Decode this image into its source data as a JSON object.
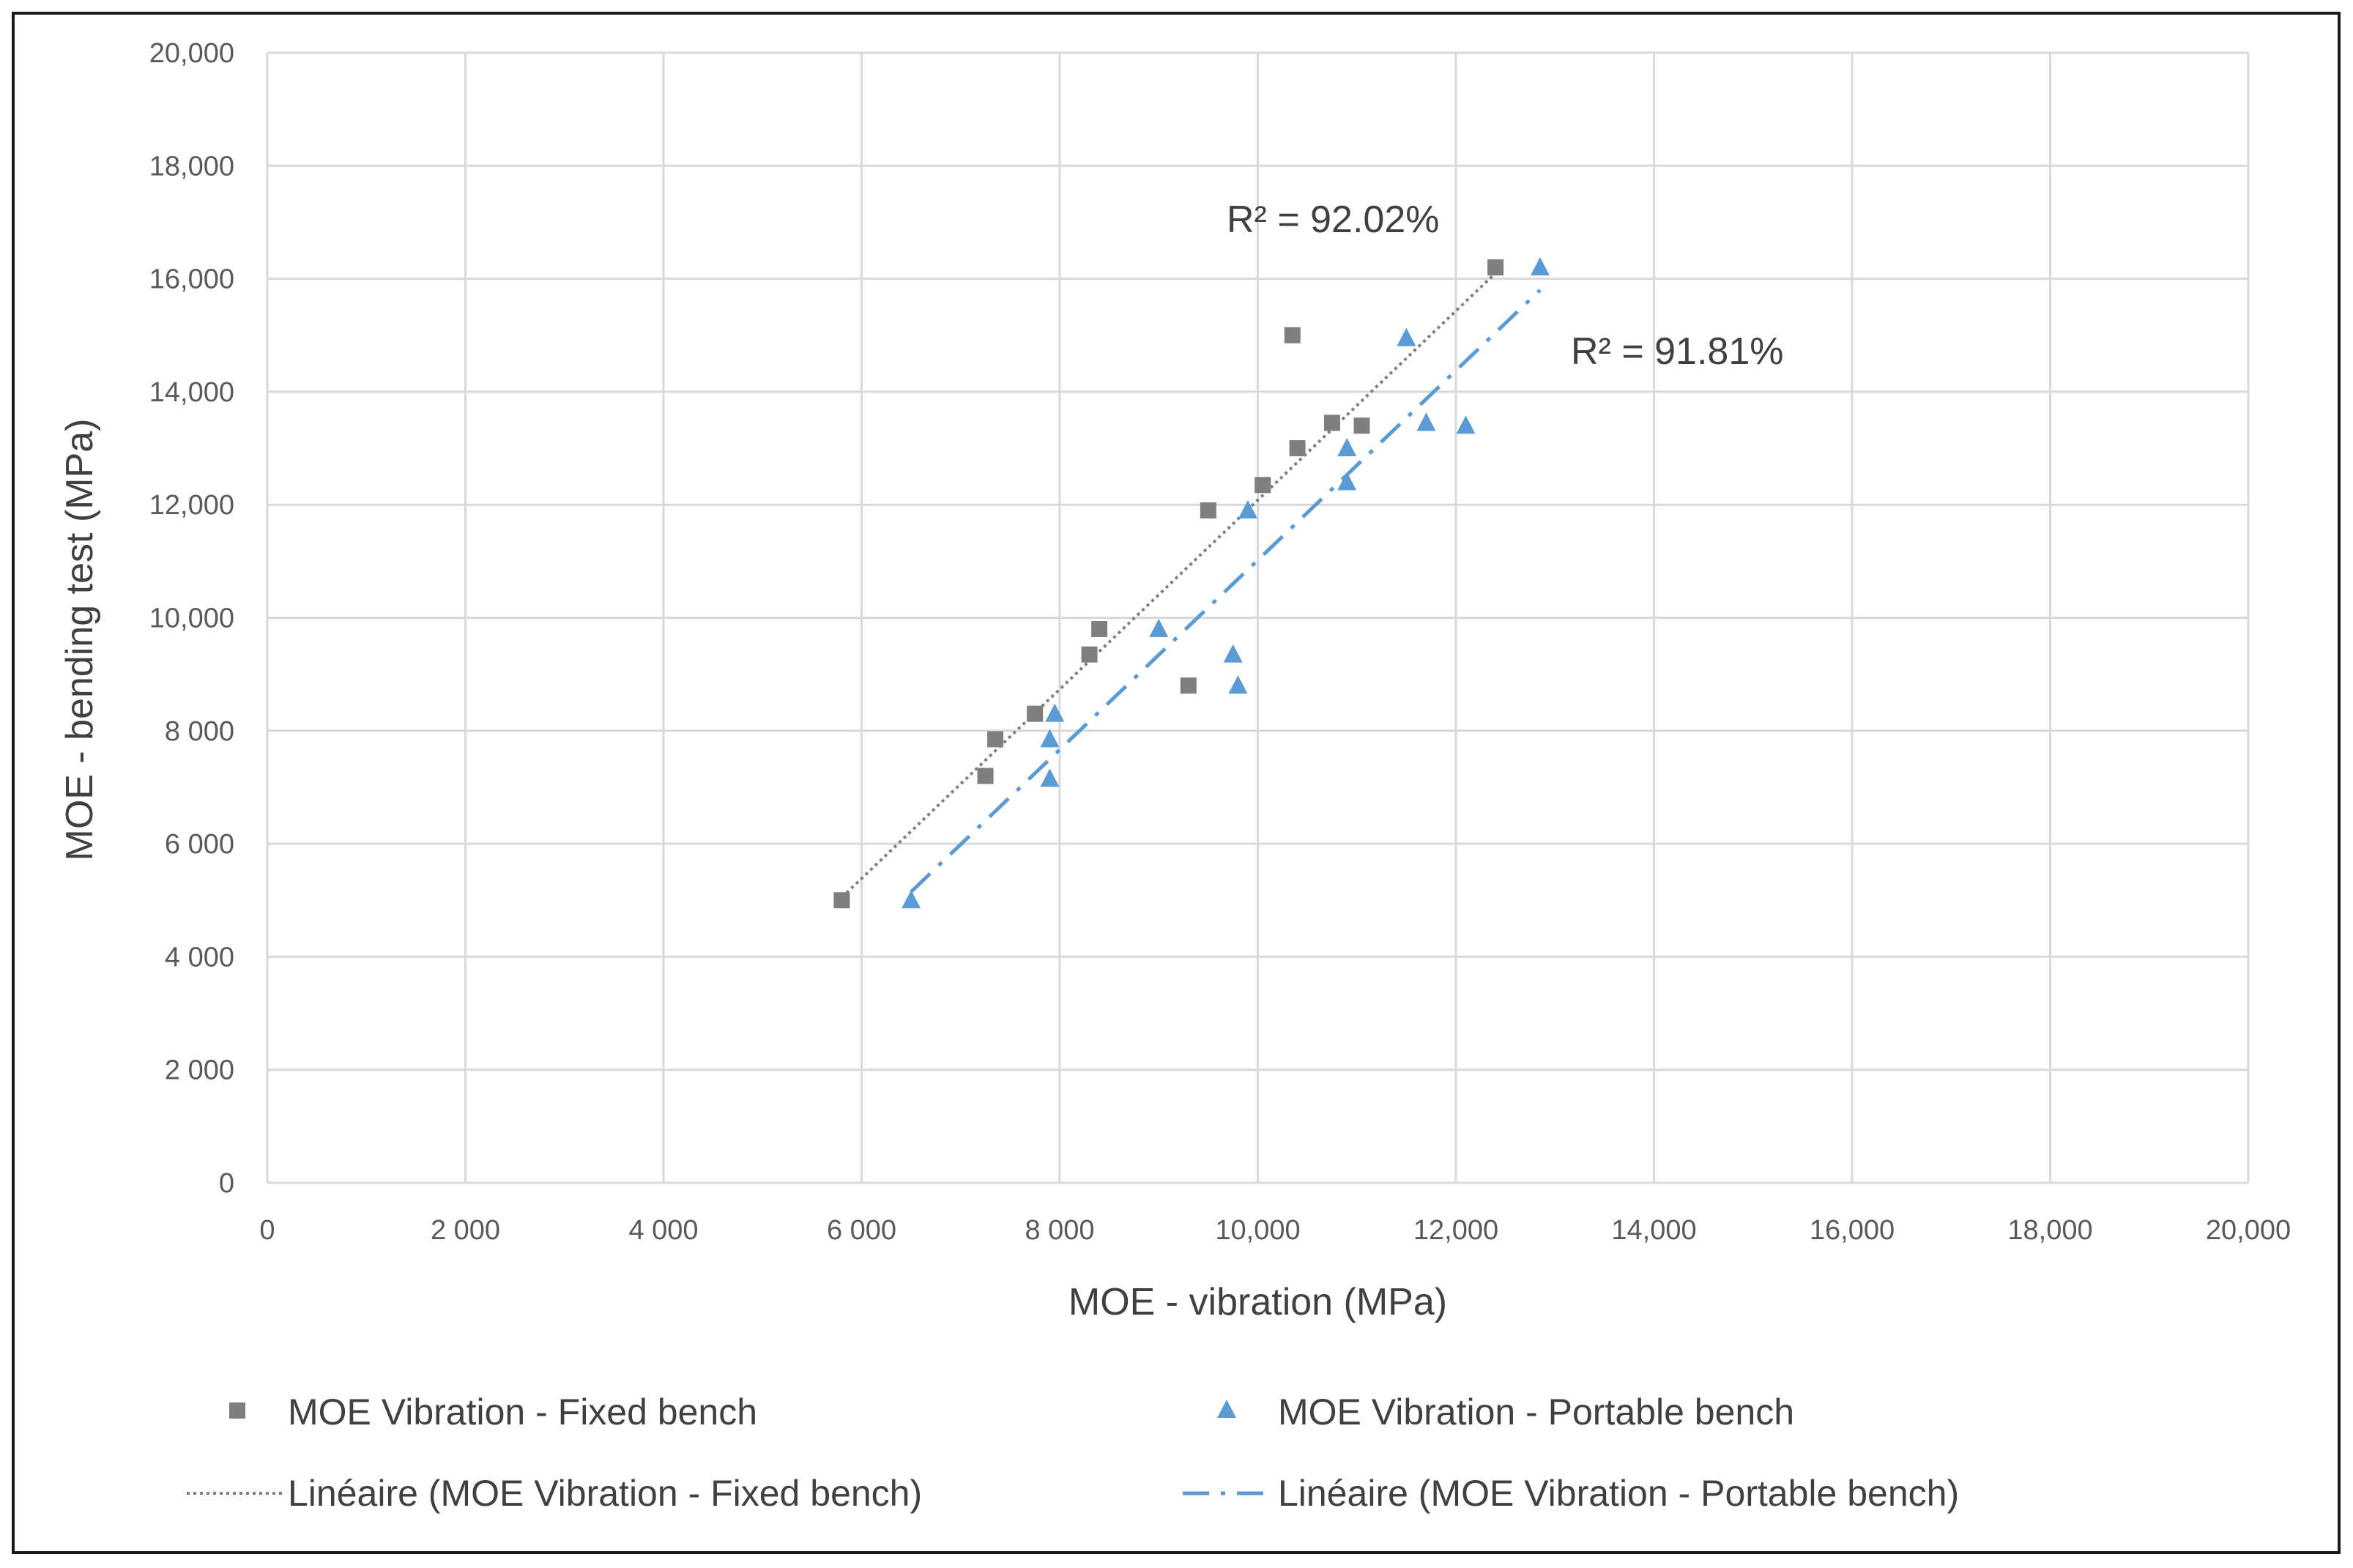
{
  "chart_data": {
    "type": "scatter",
    "title": "",
    "xlabel": "MOE - vibration (MPa)",
    "ylabel": "MOE - bending test (MPa)",
    "xlim": [
      0,
      20000
    ],
    "ylim": [
      0,
      20000
    ],
    "grid": true,
    "x_tick_values": [
      0,
      2000,
      4000,
      6000,
      8000,
      10000,
      12000,
      14000,
      16000,
      18000,
      20000
    ],
    "x_tick_labels": [
      "0",
      "2 000",
      "4 000",
      "6 000",
      "8 000",
      "10,000",
      "12,000",
      "14,000",
      "16,000",
      "18,000",
      "20,000"
    ],
    "y_tick_values": [
      0,
      2000,
      4000,
      6000,
      8000,
      10000,
      12000,
      14000,
      16000,
      18000,
      20000
    ],
    "y_tick_labels": [
      "0",
      "2 000",
      "4 000",
      "6 000",
      "8 000",
      "10,000",
      "12,000",
      "14,000",
      "16,000",
      "18,000",
      "20,000"
    ],
    "legend_position": "bottom",
    "series": [
      {
        "name": "MOE Vibration - Fixed bench",
        "marker": "square",
        "color": "#7f7f7f",
        "points": [
          [
            5800,
            5000
          ],
          [
            7250,
            7200
          ],
          [
            7350,
            7850
          ],
          [
            7750,
            8300
          ],
          [
            8300,
            9350
          ],
          [
            8400,
            9800
          ],
          [
            9300,
            8800
          ],
          [
            9500,
            11900
          ],
          [
            10050,
            12350
          ],
          [
            10350,
            15000
          ],
          [
            10400,
            13000
          ],
          [
            10750,
            13450
          ],
          [
            11050,
            13400
          ],
          [
            12400,
            16200
          ]
        ]
      },
      {
        "name": "MOE Vibration - Portable bench",
        "marker": "triangle",
        "color": "#5b9bd5",
        "points": [
          [
            6500,
            5000
          ],
          [
            7900,
            7150
          ],
          [
            7900,
            7850
          ],
          [
            7950,
            8300
          ],
          [
            9000,
            9800
          ],
          [
            9750,
            9350
          ],
          [
            9800,
            8800
          ],
          [
            9900,
            11900
          ],
          [
            10900,
            13000
          ],
          [
            10900,
            12400
          ],
          [
            11500,
            14950
          ],
          [
            11700,
            13450
          ],
          [
            12100,
            13400
          ],
          [
            12850,
            16200
          ]
        ]
      }
    ],
    "trendlines": [
      {
        "name": "Linéaire (MOE Vibration - Fixed bench)",
        "style": "dotted",
        "color": "#7f7f7f",
        "x_range": [
          5800,
          12400
        ],
        "y_range": [
          5050,
          16100
        ],
        "r2_label": "R² = 92.02%"
      },
      {
        "name": "Linéaire (MOE Vibration - Portable bench)",
        "style": "dash-dot",
        "color": "#5b9bd5",
        "x_range": [
          6500,
          12850
        ],
        "y_range": [
          5150,
          15800
        ],
        "r2_label": "R² = 91.81%"
      }
    ]
  }
}
